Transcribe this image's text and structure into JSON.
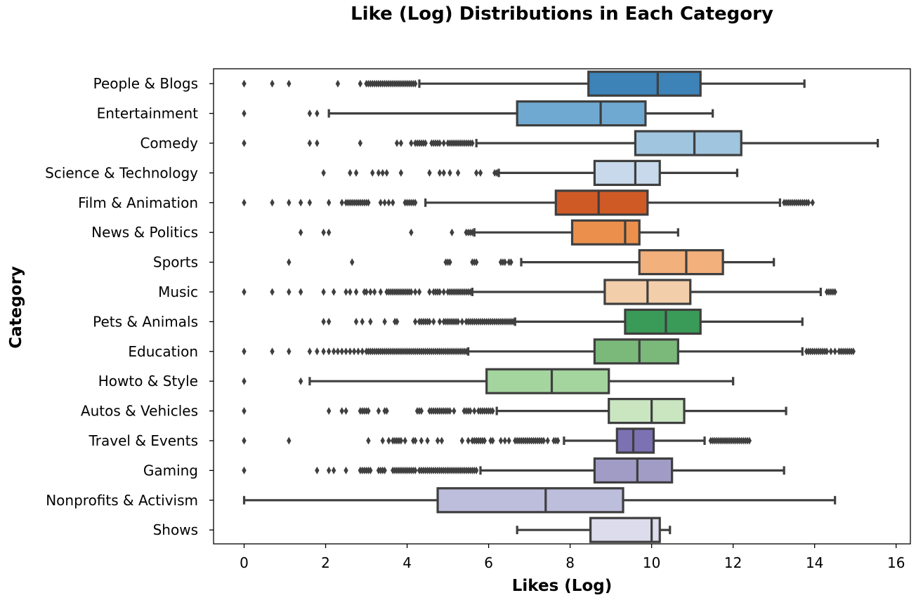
{
  "chart_data": {
    "type": "box",
    "orientation": "horizontal",
    "title": "Like (Log) Distributions in Each Category",
    "xlabel": "Likes (Log)",
    "ylabel": "Category",
    "xlim": [
      -0.75,
      16.35
    ],
    "xticks": [
      0,
      2,
      4,
      6,
      8,
      10,
      12,
      14,
      16
    ],
    "grid": false,
    "line_color": "#3f3f3f",
    "categories": [
      {
        "name": "People & Blogs",
        "color": "#3d83b8",
        "whisker_low": 4.3,
        "q1": 8.45,
        "median": 10.15,
        "q3": 11.2,
        "whisker_high": 13.75,
        "outliers": [
          0,
          0.69,
          1.1,
          2.3,
          2.85,
          3.0,
          3.05,
          3.1,
          3.15,
          3.2,
          3.25,
          3.3,
          3.35,
          3.4,
          3.45,
          3.5,
          3.55,
          3.6,
          3.65,
          3.7,
          3.75,
          3.8,
          3.85,
          3.9,
          3.95,
          4.0,
          4.05,
          4.1,
          4.15,
          4.2
        ]
      },
      {
        "name": "Entertainment",
        "color": "#6fa9d2",
        "whisker_low": 2.08,
        "q1": 6.7,
        "median": 8.75,
        "q3": 9.85,
        "whisker_high": 11.5,
        "outliers": [
          0,
          1.61,
          1.79
        ]
      },
      {
        "name": "Comedy",
        "color": "#a0c5de",
        "whisker_low": 5.7,
        "q1": 9.6,
        "median": 11.05,
        "q3": 12.2,
        "whisker_high": 15.55,
        "outliers": [
          0,
          1.61,
          1.79,
          2.85,
          3.75,
          3.85,
          4.1,
          4.2,
          4.25,
          4.3,
          4.35,
          4.4,
          4.45,
          4.6,
          4.65,
          4.7,
          4.75,
          4.8,
          4.9,
          5.0,
          5.05,
          5.1,
          5.15,
          5.2,
          5.25,
          5.3,
          5.35,
          5.4,
          5.45,
          5.5,
          5.55,
          5.6
        ]
      },
      {
        "name": "Science & Technology",
        "color": "#c7d9ea",
        "whisker_low": 6.25,
        "q1": 8.6,
        "median": 9.6,
        "q3": 10.2,
        "whisker_high": 12.1,
        "outliers": [
          1.95,
          2.6,
          2.75,
          3.15,
          3.3,
          3.4,
          3.5,
          3.85,
          4.55,
          4.8,
          4.9,
          5.05,
          5.25,
          5.7,
          5.8,
          6.15,
          6.2
        ]
      },
      {
        "name": "Film & Animation",
        "color": "#d05a26",
        "whisker_low": 4.45,
        "q1": 7.65,
        "median": 8.7,
        "q3": 9.9,
        "whisker_high": 13.15,
        "outliers": [
          0,
          0.69,
          1.1,
          1.39,
          1.61,
          2.08,
          2.4,
          2.5,
          2.55,
          2.6,
          2.65,
          2.7,
          2.75,
          2.8,
          2.85,
          2.9,
          2.95,
          3.0,
          3.05,
          3.35,
          3.45,
          3.55,
          3.65,
          3.95,
          4.0,
          4.05,
          4.1,
          4.15,
          4.2,
          13.25,
          13.3,
          13.35,
          13.4,
          13.45,
          13.5,
          13.55,
          13.6,
          13.65,
          13.7,
          13.75,
          13.8,
          13.85,
          13.95
        ]
      },
      {
        "name": "News & Politics",
        "color": "#eb904c",
        "whisker_low": 5.65,
        "q1": 8.05,
        "median": 9.35,
        "q3": 9.7,
        "whisker_high": 10.65,
        "outliers": [
          1.39,
          1.95,
          2.08,
          4.1,
          5.1,
          5.45,
          5.5,
          5.55,
          5.6
        ]
      },
      {
        "name": "Sports",
        "color": "#f2b07d",
        "whisker_low": 6.8,
        "q1": 9.7,
        "median": 10.85,
        "q3": 11.75,
        "whisker_high": 13.0,
        "outliers": [
          1.1,
          2.65,
          4.95,
          5.0,
          5.05,
          5.6,
          5.65,
          5.7,
          6.3,
          6.35,
          6.4,
          6.5,
          6.55
        ]
      },
      {
        "name": "Music",
        "color": "#f3ceab",
        "whisker_low": 5.6,
        "q1": 8.85,
        "median": 9.9,
        "q3": 10.95,
        "whisker_high": 14.15,
        "outliers": [
          0,
          0.69,
          1.1,
          1.39,
          1.95,
          2.2,
          2.5,
          2.6,
          2.75,
          2.95,
          3.0,
          3.1,
          3.2,
          3.35,
          3.5,
          3.55,
          3.6,
          3.65,
          3.7,
          3.75,
          3.8,
          3.85,
          3.9,
          3.95,
          4.0,
          4.05,
          4.1,
          4.2,
          4.3,
          4.55,
          4.65,
          4.7,
          4.75,
          4.8,
          4.9,
          5.0,
          5.05,
          5.1,
          5.15,
          5.2,
          5.25,
          5.3,
          5.35,
          5.4,
          5.45,
          5.5,
          5.55,
          14.3,
          14.35,
          14.4,
          14.45,
          14.5
        ]
      },
      {
        "name": "Pets & Animals",
        "color": "#3a9a57",
        "whisker_low": 6.65,
        "q1": 9.35,
        "median": 10.35,
        "q3": 11.2,
        "whisker_high": 13.7,
        "outliers": [
          1.95,
          2.08,
          2.75,
          2.9,
          3.1,
          3.45,
          3.7,
          3.75,
          4.2,
          4.3,
          4.35,
          4.4,
          4.45,
          4.5,
          4.55,
          4.65,
          4.8,
          4.9,
          4.95,
          5.0,
          5.05,
          5.1,
          5.15,
          5.2,
          5.25,
          5.35,
          5.45,
          5.5,
          5.55,
          5.6,
          5.65,
          5.7,
          5.75,
          5.8,
          5.85,
          5.9,
          5.95,
          6.0,
          6.05,
          6.1,
          6.15,
          6.2,
          6.25,
          6.3,
          6.35,
          6.4,
          6.45,
          6.5,
          6.55,
          6.6
        ]
      },
      {
        "name": "Education",
        "color": "#7ab97a",
        "whisker_low": 5.5,
        "q1": 8.6,
        "median": 9.7,
        "q3": 10.65,
        "whisker_high": 13.7,
        "outliers": [
          0,
          0.69,
          1.1,
          1.61,
          1.79,
          1.95,
          2.08,
          2.2,
          2.3,
          2.4,
          2.5,
          2.6,
          2.7,
          2.8,
          2.9,
          3.0,
          3.05,
          3.1,
          3.15,
          3.2,
          3.25,
          3.3,
          3.35,
          3.4,
          3.45,
          3.5,
          3.55,
          3.6,
          3.65,
          3.7,
          3.75,
          3.8,
          3.85,
          3.9,
          3.95,
          4.0,
          4.05,
          4.1,
          4.15,
          4.2,
          4.25,
          4.3,
          4.35,
          4.4,
          4.45,
          4.5,
          4.55,
          4.6,
          4.65,
          4.7,
          4.75,
          4.8,
          4.85,
          4.9,
          4.95,
          5.0,
          5.05,
          5.1,
          5.15,
          5.2,
          5.25,
          5.3,
          5.35,
          5.4,
          5.45,
          13.8,
          13.85,
          13.9,
          13.95,
          14.0,
          14.05,
          14.1,
          14.15,
          14.2,
          14.25,
          14.3,
          14.4,
          14.5,
          14.6,
          14.65,
          14.7,
          14.75,
          14.8,
          14.85,
          14.9,
          14.95
        ]
      },
      {
        "name": "Howto & Style",
        "color": "#a4d59f",
        "whisker_low": 1.61,
        "q1": 5.95,
        "median": 7.55,
        "q3": 8.95,
        "whisker_high": 12.0,
        "outliers": [
          0,
          1.39
        ]
      },
      {
        "name": "Autos & Vehicles",
        "color": "#c9e6c1",
        "whisker_low": 6.2,
        "q1": 8.95,
        "median": 10.0,
        "q3": 10.8,
        "whisker_high": 13.3,
        "outliers": [
          0,
          2.08,
          2.4,
          2.5,
          2.85,
          2.9,
          2.95,
          3.0,
          3.05,
          3.3,
          3.45,
          3.5,
          4.25,
          4.3,
          4.35,
          4.55,
          4.6,
          4.65,
          4.7,
          4.75,
          4.8,
          4.85,
          4.9,
          4.95,
          5.0,
          5.05,
          5.15,
          5.4,
          5.45,
          5.5,
          5.55,
          5.65,
          5.75,
          5.8,
          5.85,
          5.9,
          5.95,
          6.0,
          6.05,
          6.1
        ]
      },
      {
        "name": "Travel & Events",
        "color": "#7b71b3",
        "whisker_low": 7.85,
        "q1": 9.15,
        "median": 9.55,
        "q3": 10.05,
        "whisker_high": 11.3,
        "outliers": [
          0,
          1.1,
          3.05,
          3.4,
          3.55,
          3.65,
          3.7,
          3.75,
          3.8,
          3.85,
          3.95,
          4.15,
          4.2,
          4.35,
          4.5,
          4.75,
          4.85,
          5.35,
          5.5,
          5.6,
          5.65,
          5.7,
          5.75,
          5.8,
          5.85,
          5.9,
          6.05,
          6.1,
          6.3,
          6.4,
          6.5,
          6.65,
          6.7,
          6.75,
          6.8,
          6.85,
          6.9,
          6.95,
          7.0,
          7.05,
          7.1,
          7.15,
          7.2,
          7.25,
          7.3,
          7.35,
          7.45,
          7.6,
          7.65,
          7.7,
          11.45,
          11.5,
          11.55,
          11.6,
          11.65,
          11.7,
          11.75,
          11.8,
          11.85,
          11.9,
          11.95,
          12.0,
          12.05,
          12.1,
          12.15,
          12.2,
          12.25,
          12.3,
          12.35,
          12.4
        ]
      },
      {
        "name": "Gaming",
        "color": "#a09cc6",
        "whisker_low": 5.8,
        "q1": 8.6,
        "median": 9.65,
        "q3": 10.5,
        "whisker_high": 13.25,
        "outliers": [
          0,
          1.79,
          2.08,
          2.2,
          2.5,
          2.85,
          2.9,
          2.95,
          3.0,
          3.05,
          3.1,
          3.3,
          3.35,
          3.4,
          3.45,
          3.65,
          3.7,
          3.75,
          3.8,
          3.85,
          3.9,
          3.95,
          4.0,
          4.05,
          4.1,
          4.15,
          4.2,
          4.3,
          4.35,
          4.4,
          4.45,
          4.5,
          4.55,
          4.6,
          4.65,
          4.7,
          4.75,
          4.8,
          4.85,
          4.9,
          4.95,
          5.0,
          5.05,
          5.1,
          5.15,
          5.2,
          5.25,
          5.3,
          5.35,
          5.4,
          5.45,
          5.5,
          5.55,
          5.6,
          5.65,
          5.7
        ]
      },
      {
        "name": "Nonprofits & Activism",
        "color": "#bdbddc",
        "whisker_low": 0.0,
        "q1": 4.75,
        "median": 7.4,
        "q3": 9.3,
        "whisker_high": 14.5,
        "outliers": []
      },
      {
        "name": "Shows",
        "color": "#dcdcec",
        "whisker_low": 6.7,
        "q1": 8.5,
        "median": 10.0,
        "q3": 10.2,
        "whisker_high": 10.45,
        "outliers": []
      }
    ]
  }
}
